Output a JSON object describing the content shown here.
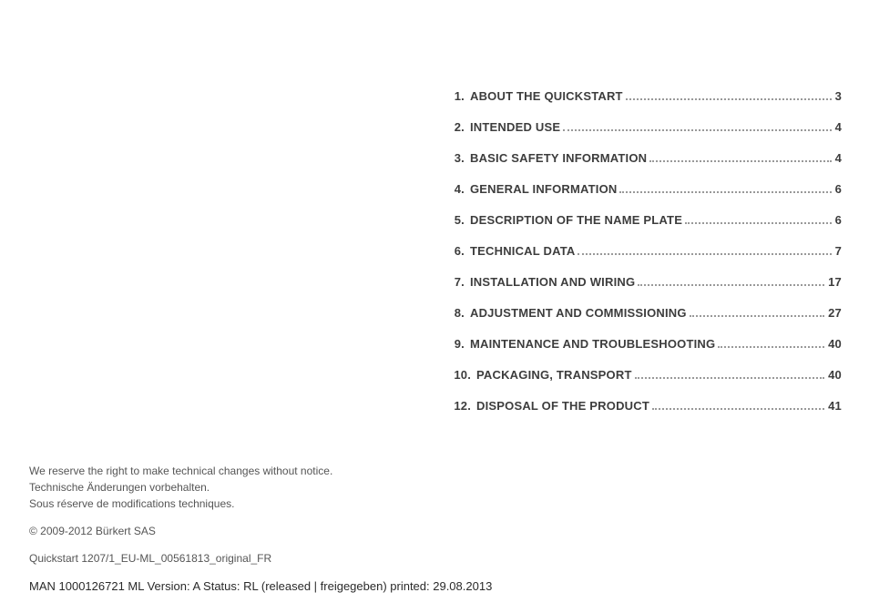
{
  "toc": [
    {
      "number": "1.",
      "title": "ABOUT THE QUICKSTART",
      "page": "3"
    },
    {
      "number": "2.",
      "title": "INTENDED USE",
      "page": "4"
    },
    {
      "number": "3.",
      "title": "BASIC SAFETY INFORMATION",
      "page": "4"
    },
    {
      "number": "4.",
      "title": "GENERAL INFORMATION",
      "page": "6"
    },
    {
      "number": "5.",
      "title": "DESCRIPTION OF THE NAME PLATE",
      "page": "6"
    },
    {
      "number": "6.",
      "title": "TECHNICAL DATA",
      "page": "7"
    },
    {
      "number": "7.",
      "title": "INSTALLATION AND WIRING",
      "page": "17"
    },
    {
      "number": "8.",
      "title": "ADJUSTMENT AND COMMISSIONING",
      "page": "27"
    },
    {
      "number": "9.",
      "title": "MAINTENANCE AND TROUBLESHOOTING",
      "page": "40"
    },
    {
      "number": "10.",
      "title": "PACKAGING, TRANSPORT",
      "page": "40"
    },
    {
      "number": "12.",
      "title": "DISPOSAL OF THE PRODUCT",
      "page": "41"
    }
  ],
  "footer": {
    "disclaimer_en": "We reserve the right to make technical changes without notice.",
    "disclaimer_de": "Technische Änderungen vorbehalten.",
    "disclaimer_fr": "Sous réserve de modifications techniques.",
    "copyright": "© 2009-2012 Bürkert SAS",
    "doc_ref": "Quickstart 1207/1_EU-ML_00561813_original_FR",
    "man_line": "MAN  1000126721  ML  Version: A Status: RL (released | freigegeben)  printed: 29.08.2013"
  }
}
